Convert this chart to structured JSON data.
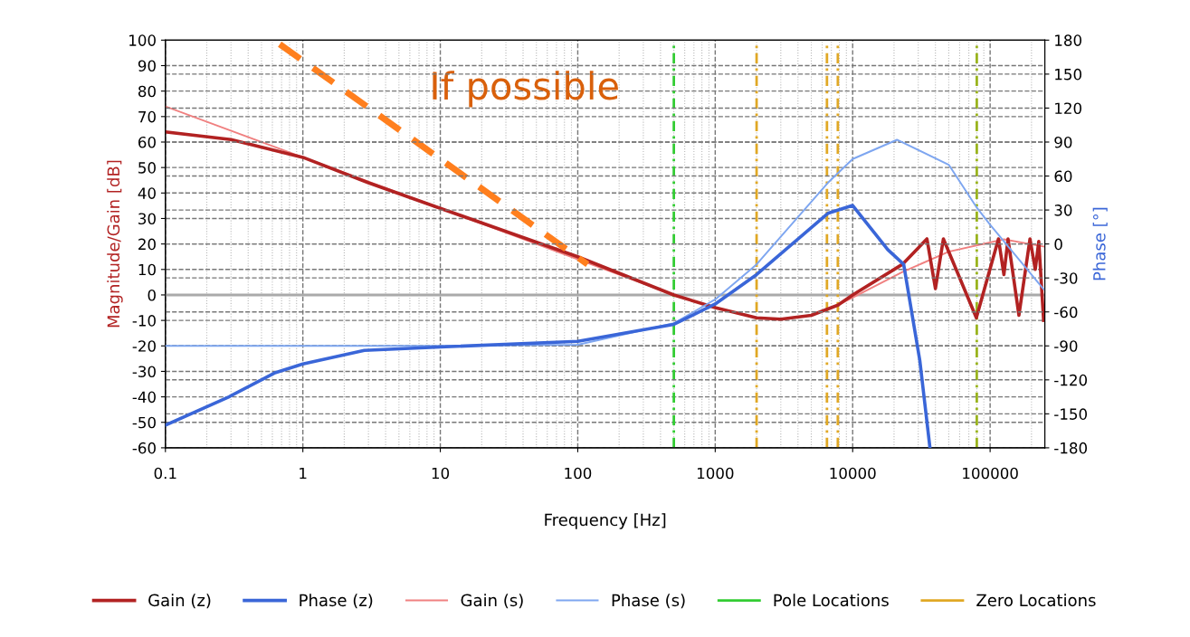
{
  "chart_data": {
    "type": "line",
    "xlabel": "Frequency [Hz]",
    "ylabel": "Magnitude/Gain [dB]",
    "y2label": "Phase [°]",
    "log": "x",
    "grid": true,
    "legend": "bottom",
    "marker": "none",
    "line_style": "solid",
    "xlim": [
      0.1,
      250000
    ],
    "xticks": [
      0.1,
      1,
      10,
      100,
      1000,
      10000,
      100000
    ],
    "ylim": [
      -60,
      100
    ],
    "yticks": [
      -60,
      -50,
      -40,
      -30,
      -20,
      -10,
      0,
      10,
      20,
      30,
      40,
      50,
      60,
      70,
      80,
      90,
      100
    ],
    "y2lim": [
      -180,
      180
    ],
    "y2ticks": [
      -180,
      -150,
      -120,
      -90,
      -60,
      -30,
      0,
      30,
      60,
      90,
      120,
      150,
      180
    ],
    "series": [
      {
        "name": "Gain (z)",
        "color": "#b22222",
        "x": [
          0.1,
          0.3,
          1,
          3,
          10,
          100,
          500,
          1000,
          2000,
          3000,
          5000,
          7800,
          10000,
          23000,
          34700,
          40000,
          45700,
          79400,
          115000,
          126000,
          135000,
          162000,
          195000,
          213000,
          226000,
          245000
        ],
        "values": [
          64,
          61,
          54,
          44,
          34,
          15,
          0,
          -5,
          -9,
          -9.5,
          -8,
          -4,
          0,
          12,
          22,
          2.5,
          22,
          -9,
          22,
          8,
          22,
          -8,
          22,
          10,
          21,
          -10
        ]
      },
      {
        "name": "Phase (z)",
        "axis": "y2",
        "color": "#3a66d8",
        "x": [
          0.1,
          0.29,
          0.62,
          1,
          2.8,
          10,
          100,
          500,
          1000,
          2000,
          6600,
          10000,
          18000,
          23500,
          30800,
          36500
        ],
        "values": [
          -160,
          -135,
          -114,
          -106,
          -94,
          -91,
          -86,
          -71,
          -53,
          -27,
          27,
          34,
          -5,
          -18,
          -103,
          -180
        ]
      },
      {
        "name": "Gain (s)",
        "color": "#f08080",
        "x": [
          0.1,
          1,
          10,
          100,
          500,
          1000,
          2000,
          3000,
          5000,
          7800,
          10000,
          23000,
          50000,
          126000,
          245000
        ],
        "values": [
          74,
          54,
          34,
          14,
          0,
          -5,
          -9,
          -9.5,
          -8,
          -4,
          -1,
          9,
          17,
          21.8,
          19
        ]
      },
      {
        "name": "Phase (s)",
        "axis": "y2",
        "color": "#7ea6f0",
        "x": [
          0.1,
          1,
          10,
          100,
          500,
          1000,
          2000,
          6600,
          10000,
          21000,
          50000,
          79000,
          100000,
          245000
        ],
        "values": [
          -90,
          -90,
          -90,
          -89,
          -70,
          -49,
          -18,
          54,
          75,
          92,
          70,
          33,
          17,
          -40
        ]
      }
    ],
    "ref_lines": [
      {
        "axis": "y",
        "value": 0,
        "label": null,
        "color": "#aaaaaa",
        "line_style": "solid"
      },
      {
        "axis": "x",
        "value": 500,
        "label": "Pole Locations",
        "color": "#33cc33",
        "line_style": "dashed"
      },
      {
        "axis": "x",
        "value": 80000,
        "label": null,
        "color": "#9ab41e",
        "line_style": "dashed"
      },
      {
        "axis": "x",
        "value": 2000,
        "label": "Zero Locations",
        "color": "#e0a825",
        "line_style": "dashed"
      },
      {
        "axis": "x",
        "value": 6500,
        "label": null,
        "color": "#e0a825",
        "line_style": "dashed"
      },
      {
        "axis": "x",
        "value": 7800,
        "label": null,
        "color": "#e0a825",
        "line_style": "dashed"
      }
    ],
    "annotations": [
      "If possible"
    ]
  }
}
